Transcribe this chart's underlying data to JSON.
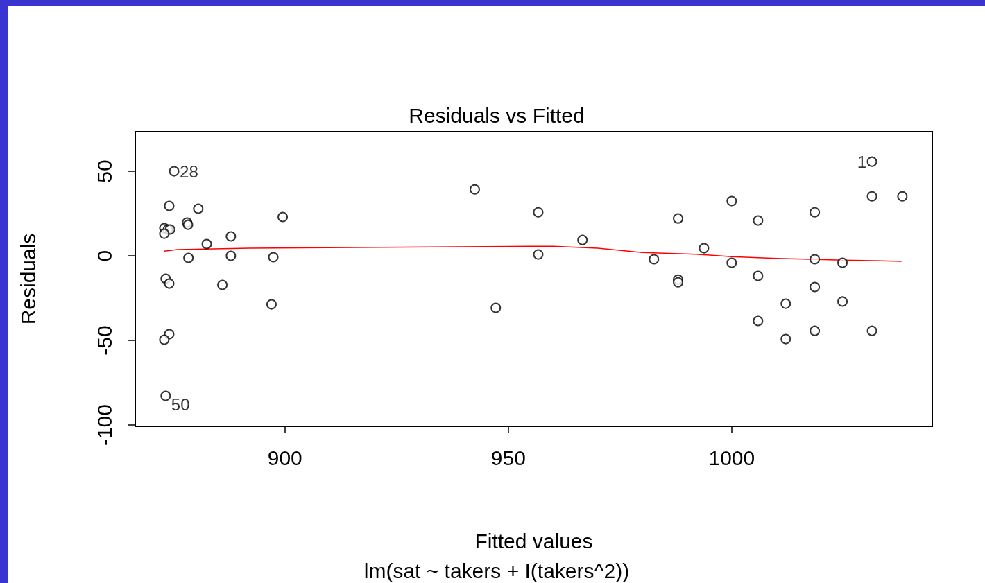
{
  "chart_data": {
    "type": "scatter",
    "title": "Residuals vs Fitted",
    "subtitle": "lm(sat ~ takers + I(takers^2))",
    "xlabel": "Fitted values",
    "ylabel": "Residuals",
    "xlim": [
      866.5,
      1044.9
    ],
    "ylim": [
      -100.8,
      73.4
    ],
    "xticks": [
      900,
      950,
      1000
    ],
    "yticks": [
      -100,
      -50,
      0,
      50
    ],
    "grid": false,
    "marker": "circle",
    "series": [
      {
        "color": "#000000",
        "x": [
          875.2,
          874.1,
          880.6,
          878.1,
          878.3,
          873,
          873.8,
          874.3,
          873,
          887.9,
          882.5,
          878.4,
          887.9,
          897.4,
          873.3,
          874.1,
          886,
          897,
          874.1,
          873,
          873.3,
          899.5,
          942.5,
          947.2,
          956.7,
          956.7,
          966.6,
          982.6,
          988,
          988,
          988,
          993.8,
          1000,
          1000,
          1005.9,
          1005.9,
          1005.9,
          1012.1,
          1012.1,
          1018.6,
          1018.6,
          1018.6,
          1018.6,
          1024.8,
          1024.8,
          1031.4,
          1031.4,
          1031.4,
          1038.2
        ],
        "values": [
          50,
          29.5,
          27.9,
          19.7,
          18.4,
          16.4,
          15.6,
          15.6,
          13.1,
          11.5,
          7,
          -1.2,
          0,
          -0.8,
          -13.5,
          -16.4,
          -17.2,
          -28.7,
          -46.3,
          -49.6,
          -82.8,
          23,
          39.3,
          -30.7,
          25.8,
          0.8,
          9.4,
          -2,
          22.1,
          -14,
          -15.6,
          4.5,
          32.4,
          -4.1,
          20.9,
          -11.9,
          -38.5,
          -28.3,
          -49.2,
          25.8,
          -2,
          -18.4,
          -44.3,
          -4.1,
          -27,
          55.7,
          35.2,
          -44.3,
          35.2
        ]
      },
      {
        "type": "line",
        "color": "#ff0000",
        "marker": "none",
        "x": [
          873,
          876,
          892,
          945,
          960,
          970,
          980,
          992,
          1000,
          1010,
          1025,
          1038
        ],
        "values": [
          2.8,
          3.7,
          4.5,
          5.5,
          5.7,
          4.5,
          2,
          1,
          -0.5,
          -1.5,
          -2.5,
          -3.2
        ]
      }
    ],
    "ref_lines": [
      {
        "axis": "y",
        "value": 0,
        "color": "#bebebe",
        "line_style": "dashed"
      }
    ],
    "annotations": [
      {
        "text": "28",
        "x": 875.2,
        "y": 50
      },
      {
        "text": "1",
        "x": 1031.4,
        "y": 55.7
      },
      {
        "text": "50",
        "x": 873.3,
        "y": -82.8
      }
    ]
  }
}
